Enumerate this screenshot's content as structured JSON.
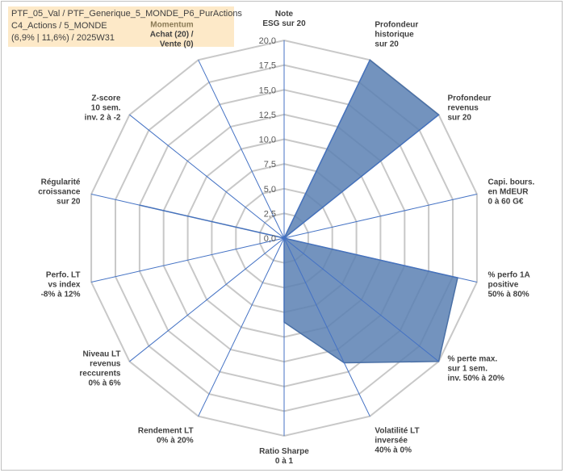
{
  "info": {
    "line1": "PTF_05_Val / PTF_Generique_5_MONDE_P6_PurActions",
    "line2": "C4_Actions / 5_MONDE",
    "line3": "(6,9% | 11,6%) / 2025W31"
  },
  "chart_data": {
    "type": "radar",
    "title": "",
    "rmax": 20,
    "ticks": [
      "0,0",
      "2,5",
      "5,0",
      "7,5",
      "10,0",
      "12,5",
      "15,0",
      "17,5",
      "20,0"
    ],
    "grid": true,
    "series_color": "#5b80b3",
    "axes": [
      {
        "label": [
          "Note",
          "ESG sur 20"
        ],
        "value": 0
      },
      {
        "label": [
          "Profondeur",
          "historique",
          "sur 20"
        ],
        "value": 20
      },
      {
        "label": [
          "Profondeur",
          "revenus",
          "sur 20"
        ],
        "value": 20
      },
      {
        "label": [
          "Capi. bours.",
          "en MdEUR",
          "0 à 60 G€"
        ],
        "value": 0
      },
      {
        "label": [
          "% perfo 1A",
          "positive",
          "50% à 80%"
        ],
        "value": 18
      },
      {
        "label": [
          "% perte max.",
          "sur 1 sem.",
          "inv. 50% à 20%"
        ],
        "value": 20
      },
      {
        "label": [
          "Volatilité LT",
          "inversée",
          "40% à 0%"
        ],
        "value": 14
      },
      {
        "label": [
          "Ratio Sharpe",
          "0 à 1"
        ],
        "value": 8.5
      },
      {
        "label": [
          "Rendement LT",
          "0% à 20%"
        ],
        "value": 0
      },
      {
        "label": [
          "Niveau LT",
          "revenus",
          "reccurents",
          "0% à 6%"
        ],
        "value": 0
      },
      {
        "label": [
          "Perfo. LT",
          "vs index",
          "-8% à 12%"
        ],
        "value": 0
      },
      {
        "label": [
          "Régularité",
          "croissance",
          "sur 20"
        ],
        "value": 15
      },
      {
        "label": [
          "Z-score",
          "10 sem.",
          "inv. 2 à -2"
        ],
        "value": 0
      },
      {
        "label": [
          "Momentum",
          "Achat (20) /",
          "Vente (0)"
        ],
        "value": 0
      }
    ]
  }
}
